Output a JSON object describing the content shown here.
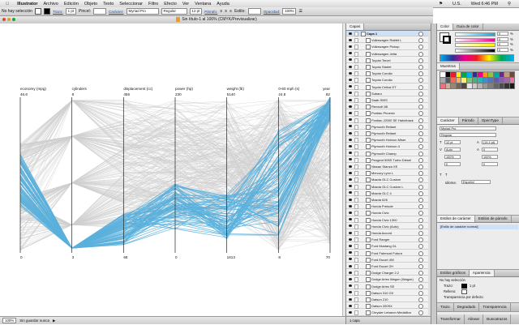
{
  "menubar": {
    "app": "Illustrator",
    "items": [
      "Archivo",
      "Edición",
      "Objeto",
      "Texto",
      "Seleccionar",
      "Filtro",
      "Efecto",
      "Ver",
      "Ventana",
      "Ayuda"
    ],
    "status": [
      "U.S.",
      "Wed 6:46 PM"
    ]
  },
  "control": {
    "selection": "No hay selección",
    "stroke_label": "Trazo:",
    "stroke_value": "1 pt",
    "brush_label": "Pincel:",
    "char_link": "Carácter:",
    "font": "Myriad Pro",
    "style": "Regular",
    "size": "12 pt",
    "para_link": "Párrafo:",
    "style_label": "Estilo:",
    "opacity_link": "Opacidad:",
    "opacity": "100",
    "opacity_unit": "%"
  },
  "document": {
    "title": "Sin título-1 al 100% (CMYK/Previsualizar)"
  },
  "chart_data": {
    "type": "parallel-coordinates",
    "axes": [
      {
        "label": "economy (mpg)",
        "max": "46.6",
        "min": "0"
      },
      {
        "label": "cylinders",
        "max": "8",
        "min": "3"
      },
      {
        "label": "displacement (cc)",
        "max": "455",
        "min": "68"
      },
      {
        "label": "power (hp)",
        "max": "230",
        "min": "0"
      },
      {
        "label": "weight (lb)",
        "max": "5140",
        "min": "1613"
      },
      {
        "label": "0-60 mph (s)",
        "max": "24.8",
        "min": "8"
      },
      {
        "label": "year",
        "max": "82",
        "min": "70"
      }
    ],
    "grey_lines": 300,
    "highlight_lines": 75,
    "highlight_color": "#5ab0dc",
    "context_color": "#cfcfcf"
  },
  "status": {
    "zoom": "100%",
    "info": "Sin guardar nunca"
  },
  "layers": {
    "tabs": [
      "Capas"
    ],
    "top": "Capa 1",
    "rows": [
      "Volkswagen Rabbit L",
      "Volkswagen Pickup",
      "Volkswagen Jetta",
      "Toyota Tercel",
      "Toyota Starlet",
      "Toyota Corolla",
      "Toyota Corolla",
      "Toyota Celica GT",
      "Subaru",
      "Saab 900S",
      "Renault 18i",
      "Pontiac Phoenix",
      "Pontiac J2000 SE Hatchback",
      "Plymouth Reliant",
      "Plymouth Reliant",
      "Plymouth Horizon Miser",
      "Plymouth Horizon 4",
      "Plymouth Champ",
      "Peugeot 505S Turbo Diesel",
      "Nissan Stanza XE",
      "Mercury Lynx L",
      "Mazda GLC Custom",
      "Mazda GLC Custom L",
      "Mazda GLC 4",
      "Mazda 626",
      "Honda Prelude",
      "Honda Civic",
      "Honda Civic 1300",
      "Honda Civic (Auto)",
      "Honda Accord",
      "Ford Ranger",
      "Ford Mustang GL",
      "Ford Fairmont Futura",
      "Ford Escort 4W",
      "Ford Escort 2H",
      "Dodge Charger 2.2",
      "Dodge Aries Wagon (Wagon)",
      "Dodge Aries SE",
      "Datsun 310 GX",
      "Datsun 210",
      "Datsun 200SX",
      "Chrysler Lebaron Medallion",
      "Chevy S-10"
    ],
    "footer": "1 capa"
  },
  "right": {
    "color_tabs": [
      "Color",
      "Guía de color"
    ],
    "color_values": [
      "0",
      "0",
      "0",
      "0"
    ],
    "color_unit": "%",
    "swatch_tab": "Muestras",
    "char_tabs": [
      "Carácter",
      "Párrafo",
      "OpenType"
    ],
    "font": "Myriad Pro",
    "style": "Regular",
    "size": "12 pt",
    "leading": "(14.4 pt)",
    "kerning": "Auto",
    "tracking": "0",
    "scale": "100%",
    "lang_label": "Idioma:",
    "lang": "Español",
    "style_tabs": [
      "Estilos de carácter",
      "Estilos de párrafo"
    ],
    "style_item": "[Estilo de carácter normal]",
    "graphic_tabs": [
      "Estilos gráficos",
      "Apariencia"
    ],
    "appearance_sel": "No hay selección",
    "stroke_label": "Trazo:",
    "stroke_val": "1 pt",
    "fill_label": "Relleno:",
    "transparency": "Transparencia por defecto",
    "grad_tabs": [
      "Trazo",
      "Degradado",
      "Transparencia"
    ],
    "bottom_tabs": [
      "Transformar",
      "Alinear",
      "Buscatrazos"
    ]
  },
  "colors": {
    "highlight": "#5ab0dc",
    "context": "#cfcfcf",
    "selection_row": "#cfe0f7"
  }
}
